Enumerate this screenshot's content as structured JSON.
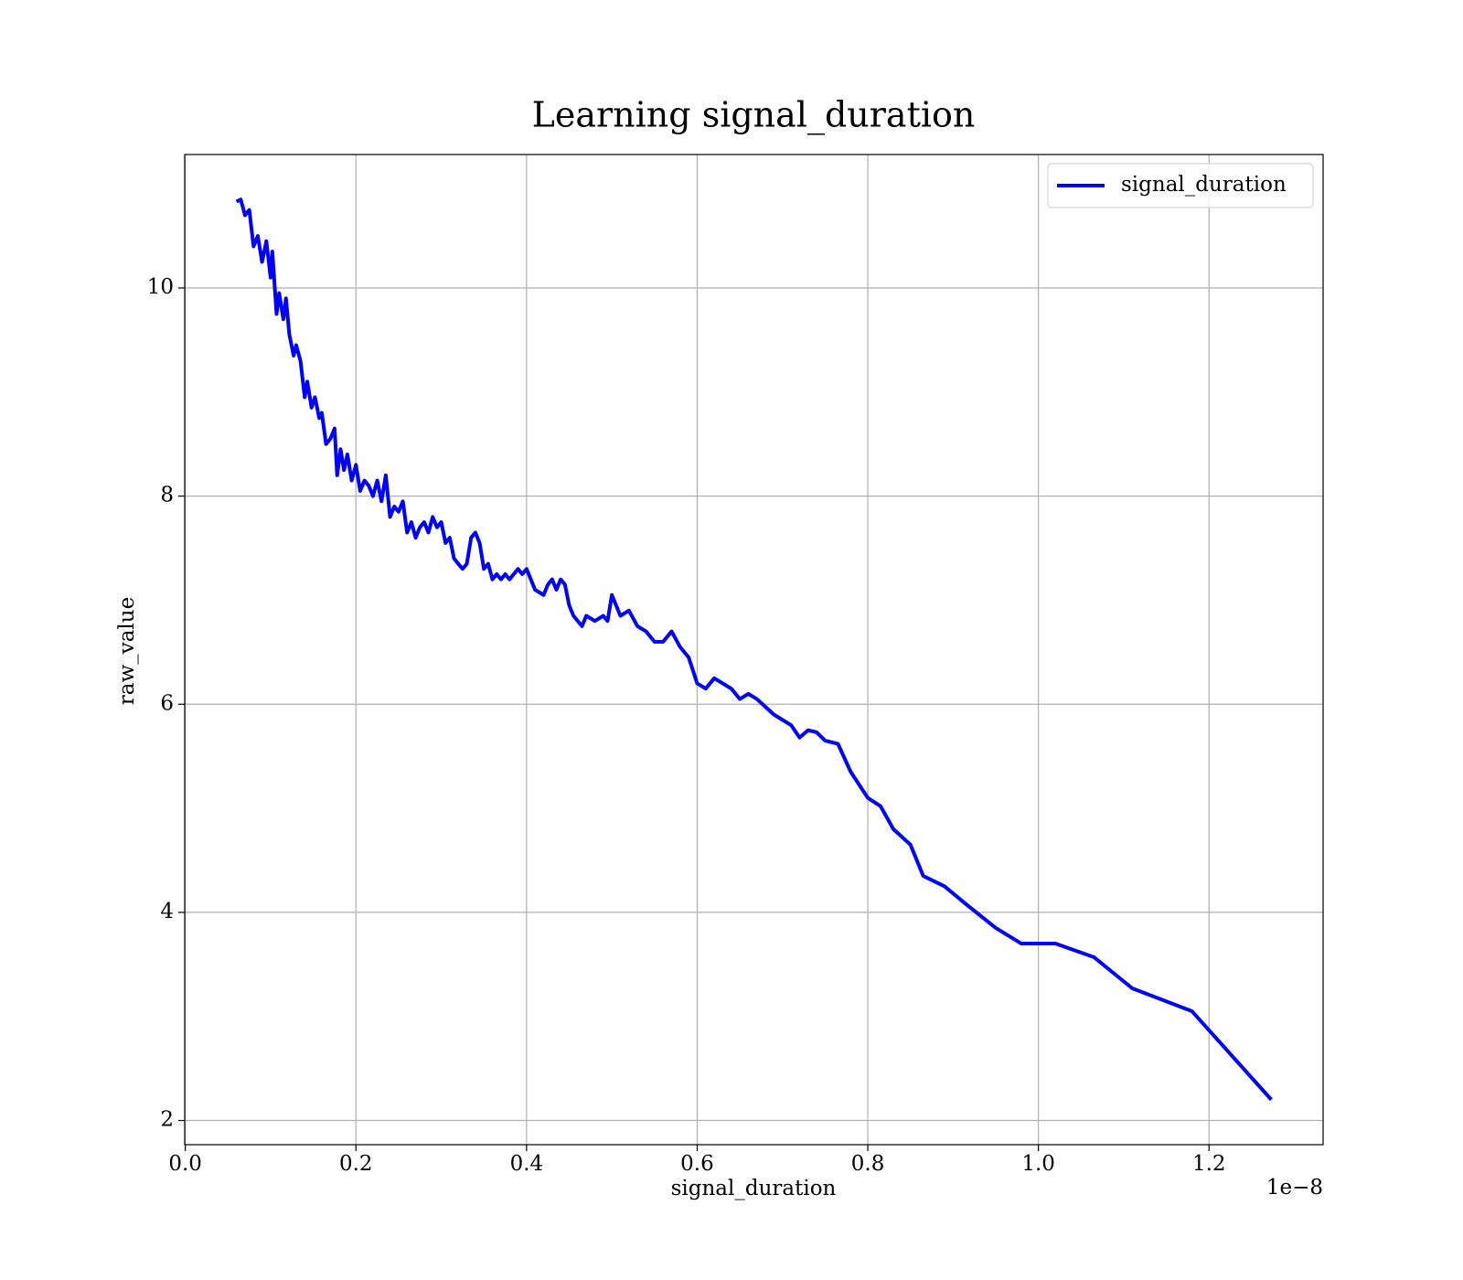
{
  "chart_data": {
    "type": "line",
    "title": "Learning signal_duration",
    "x_label": "signal_duration",
    "y_label": "raw_value",
    "x_offset_text": "1e−8",
    "x": [
      0.06,
      0.065,
      0.07,
      0.075,
      0.08,
      0.085,
      0.09,
      0.095,
      0.1,
      0.102,
      0.107,
      0.11,
      0.115,
      0.118,
      0.122,
      0.127,
      0.13,
      0.135,
      0.14,
      0.143,
      0.148,
      0.152,
      0.157,
      0.16,
      0.165,
      0.17,
      0.175,
      0.178,
      0.182,
      0.186,
      0.19,
      0.195,
      0.2,
      0.205,
      0.21,
      0.215,
      0.22,
      0.225,
      0.23,
      0.235,
      0.24,
      0.245,
      0.25,
      0.255,
      0.26,
      0.265,
      0.27,
      0.275,
      0.28,
      0.285,
      0.29,
      0.295,
      0.3,
      0.305,
      0.31,
      0.315,
      0.32,
      0.325,
      0.33,
      0.335,
      0.34,
      0.345,
      0.35,
      0.355,
      0.36,
      0.365,
      0.37,
      0.375,
      0.38,
      0.385,
      0.39,
      0.395,
      0.4,
      0.41,
      0.42,
      0.425,
      0.43,
      0.435,
      0.44,
      0.445,
      0.45,
      0.455,
      0.46,
      0.465,
      0.47,
      0.48,
      0.49,
      0.495,
      0.5,
      0.51,
      0.52,
      0.53,
      0.54,
      0.55,
      0.56,
      0.57,
      0.58,
      0.59,
      0.6,
      0.61,
      0.62,
      0.63,
      0.64,
      0.65,
      0.66,
      0.67,
      0.69,
      0.71,
      0.72,
      0.73,
      0.74,
      0.75,
      0.765,
      0.78,
      0.8,
      0.815,
      0.83,
      0.85,
      0.865,
      0.89,
      0.915,
      0.95,
      0.98,
      1.02,
      1.065,
      1.11,
      1.18,
      1.273
    ],
    "series": [
      {
        "name": "signal_duration",
        "color": "#0000ff",
        "values": [
          10.83,
          10.85,
          10.7,
          10.75,
          10.4,
          10.5,
          10.25,
          10.45,
          10.1,
          10.35,
          9.75,
          9.95,
          9.7,
          9.9,
          9.55,
          9.35,
          9.45,
          9.3,
          8.95,
          9.1,
          8.85,
          8.95,
          8.75,
          8.8,
          8.5,
          8.55,
          8.65,
          8.2,
          8.45,
          8.25,
          8.4,
          8.15,
          8.3,
          8.05,
          8.15,
          8.1,
          8.0,
          8.15,
          7.95,
          8.2,
          7.8,
          7.9,
          7.85,
          7.95,
          7.65,
          7.75,
          7.6,
          7.7,
          7.75,
          7.65,
          7.8,
          7.7,
          7.75,
          7.55,
          7.6,
          7.4,
          7.35,
          7.3,
          7.35,
          7.6,
          7.65,
          7.55,
          7.3,
          7.35,
          7.2,
          7.25,
          7.2,
          7.25,
          7.2,
          7.25,
          7.3,
          7.25,
          7.3,
          7.1,
          7.05,
          7.15,
          7.2,
          7.1,
          7.2,
          7.15,
          6.95,
          6.85,
          6.8,
          6.75,
          6.85,
          6.8,
          6.85,
          6.8,
          7.05,
          6.85,
          6.9,
          6.75,
          6.7,
          6.6,
          6.6,
          6.7,
          6.55,
          6.45,
          6.2,
          6.15,
          6.25,
          6.2,
          6.15,
          6.05,
          6.1,
          6.05,
          5.9,
          5.8,
          5.68,
          5.75,
          5.73,
          5.65,
          5.62,
          5.35,
          5.1,
          5.02,
          4.8,
          4.65,
          4.35,
          4.25,
          4.08,
          3.85,
          3.7,
          3.7,
          3.57,
          3.27,
          3.05,
          2.2
        ]
      }
    ],
    "xlim": [
      -0.0007,
      1.3337
    ],
    "xticks": [
      {
        "value": 0,
        "label": "0.0"
      },
      0.2,
      0.4,
      0.6,
      0.8,
      {
        "value": 1,
        "label": "1.0"
      },
      1.2
    ],
    "ylim": [
      1.7675,
      11.2825
    ],
    "yticks": [
      2,
      4,
      6,
      8,
      10
    ],
    "grid": true,
    "legend": "upper right"
  }
}
